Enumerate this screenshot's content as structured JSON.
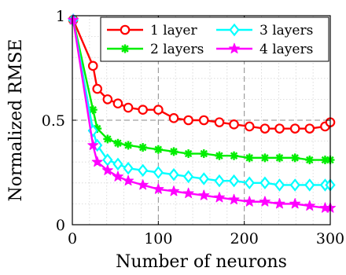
{
  "chart_data": {
    "type": "line",
    "xlabel": "Number of neurons",
    "ylabel": "Normalized RMSE",
    "xlim": [
      0,
      300
    ],
    "ylim": [
      0,
      1
    ],
    "x_ticks": [
      "0",
      "100",
      "200",
      "300"
    ],
    "y_ticks": [
      "0",
      "0.5",
      "1"
    ],
    "grid": true,
    "legend_position": "top-right",
    "x": [
      1,
      24,
      29,
      41,
      53,
      65,
      82,
      100,
      118,
      135,
      153,
      171,
      188,
      206,
      224,
      241,
      259,
      276,
      294,
      300
    ],
    "series": [
      {
        "name": "1 layer",
        "color": "#ff0000",
        "marker": "circle",
        "values": [
          0.98,
          0.76,
          0.65,
          0.6,
          0.58,
          0.56,
          0.55,
          0.55,
          0.51,
          0.5,
          0.5,
          0.49,
          0.48,
          0.47,
          0.46,
          0.46,
          0.46,
          0.46,
          0.47,
          0.49
        ]
      },
      {
        "name": "2 layers",
        "color": "#00ee00",
        "marker": "asterisk",
        "values": [
          0.98,
          0.55,
          0.46,
          0.41,
          0.39,
          0.38,
          0.37,
          0.36,
          0.35,
          0.34,
          0.34,
          0.33,
          0.33,
          0.32,
          0.32,
          0.32,
          0.32,
          0.31,
          0.31,
          0.31
        ]
      },
      {
        "name": "3 layers",
        "color": "#00ffff",
        "marker": "diamond",
        "values": [
          0.98,
          0.45,
          0.38,
          0.31,
          0.29,
          0.27,
          0.26,
          0.25,
          0.24,
          0.23,
          0.22,
          0.21,
          0.21,
          0.2,
          0.2,
          0.19,
          0.19,
          0.19,
          0.19,
          0.19
        ]
      },
      {
        "name": "4 layers",
        "color": "#ff00ff",
        "marker": "pentagram",
        "values": [
          0.98,
          0.38,
          0.3,
          0.26,
          0.23,
          0.21,
          0.19,
          0.17,
          0.16,
          0.15,
          0.14,
          0.13,
          0.12,
          0.11,
          0.11,
          0.1,
          0.1,
          0.09,
          0.08,
          0.08
        ]
      }
    ]
  }
}
